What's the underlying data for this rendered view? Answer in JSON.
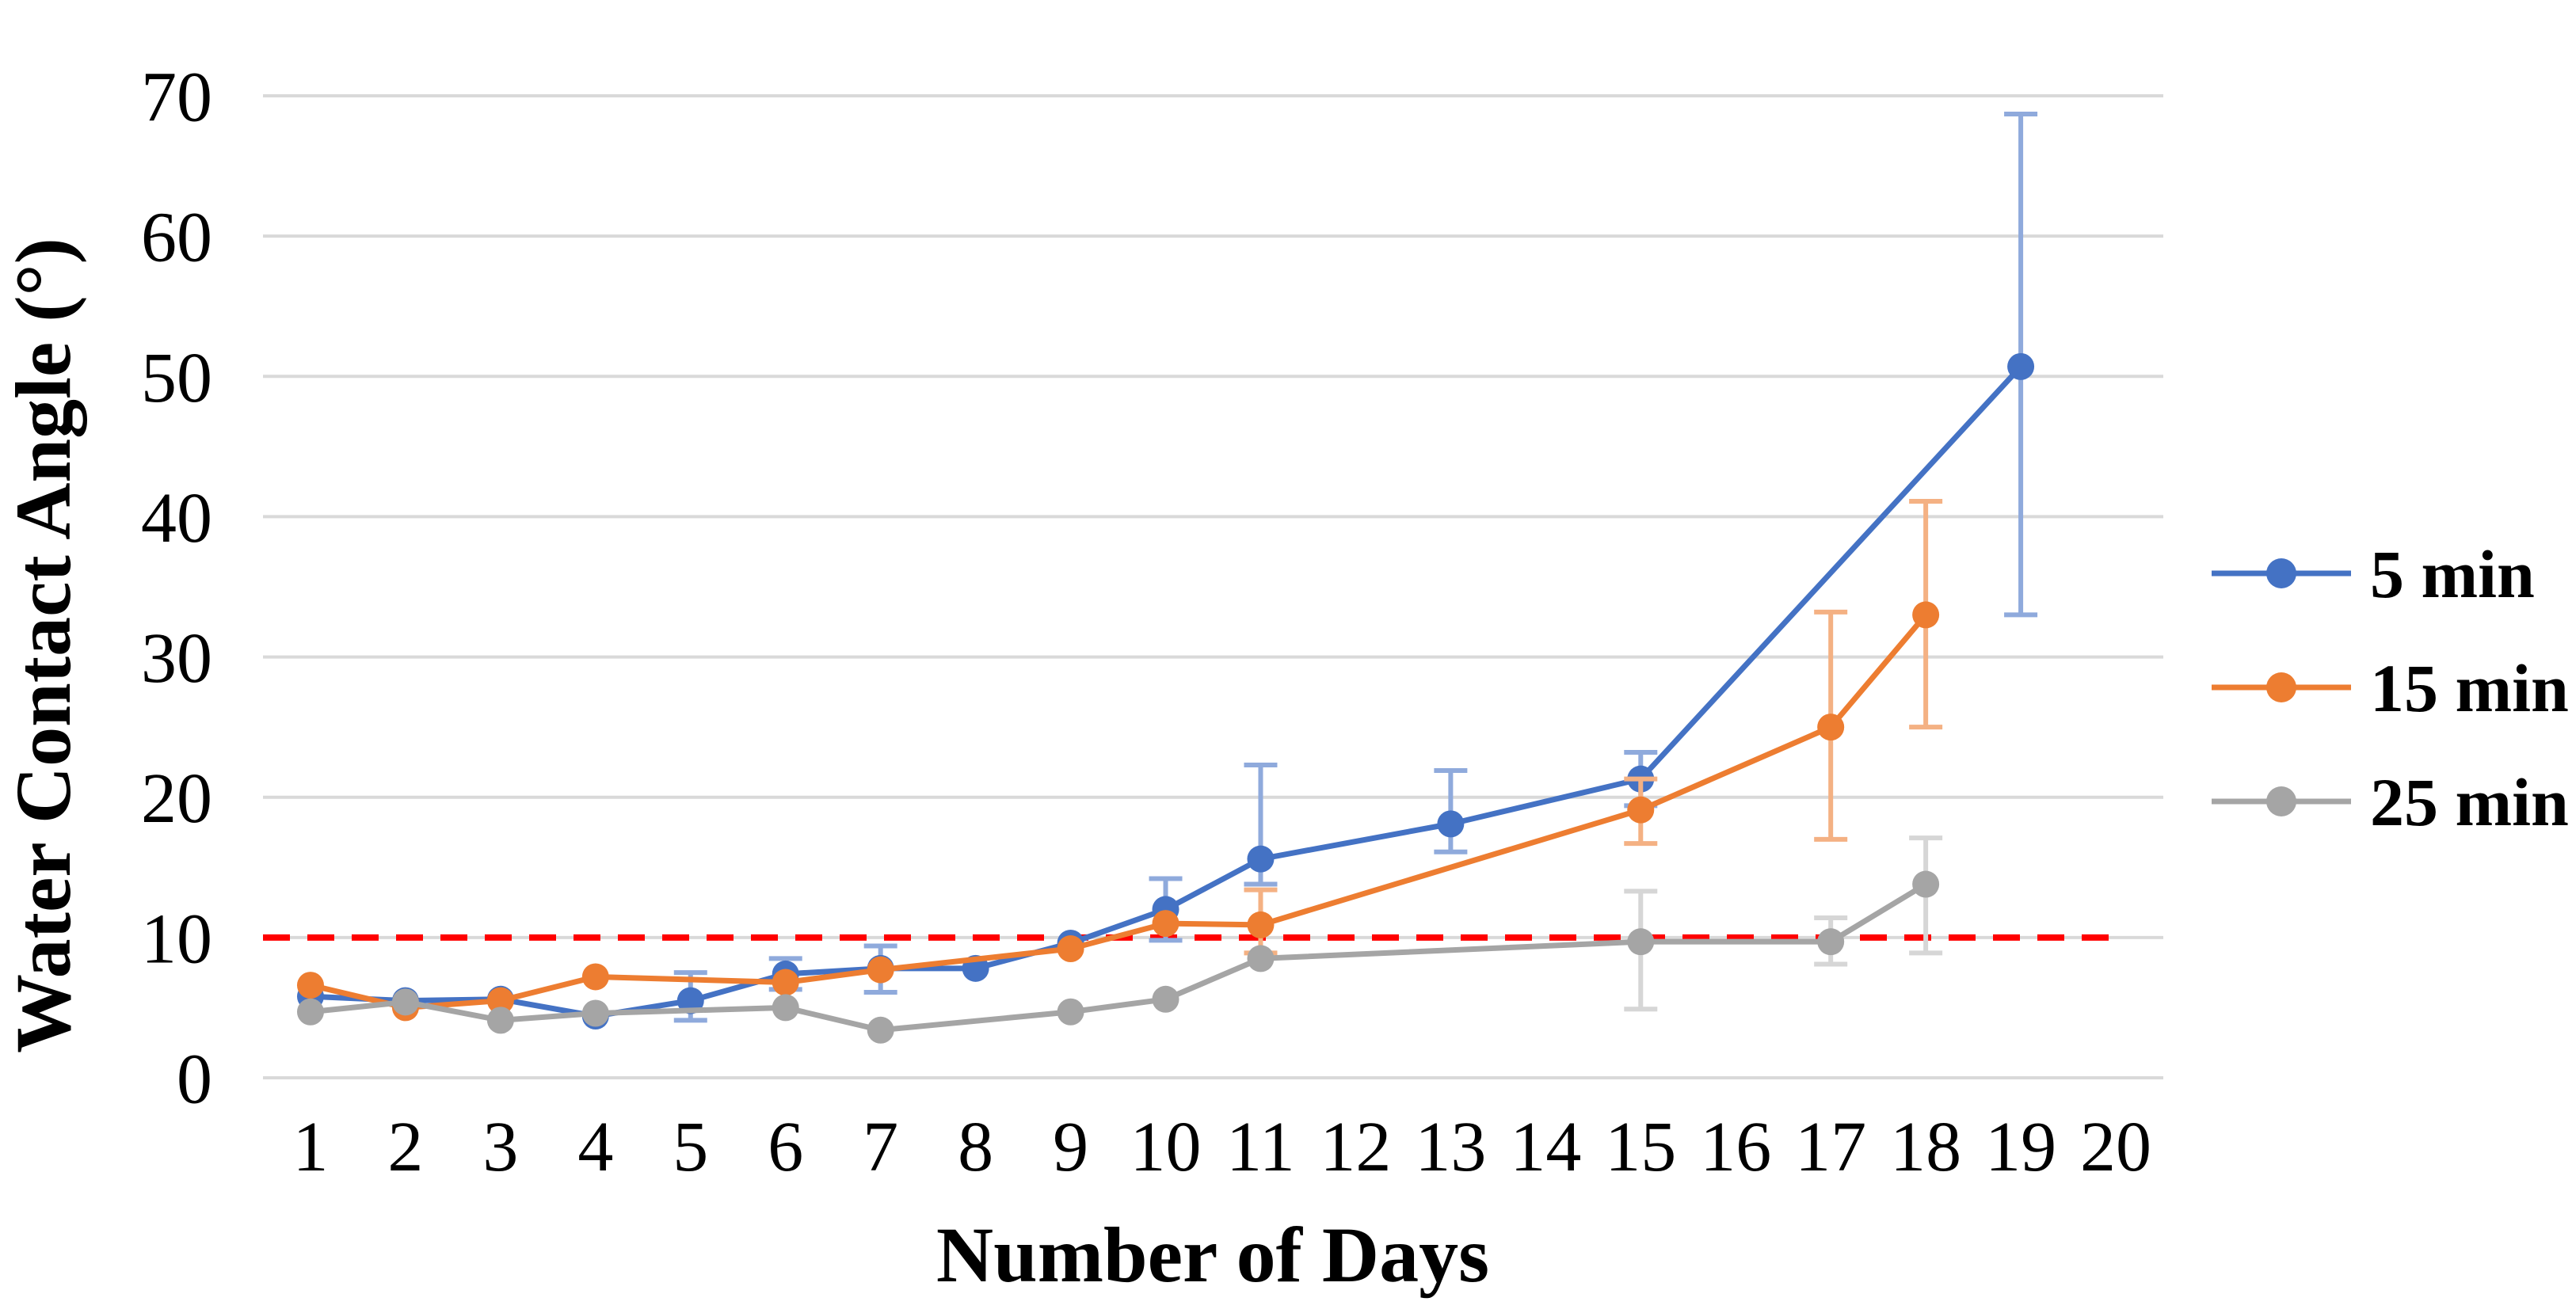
{
  "chart_data": {
    "type": "line",
    "title": "",
    "xlabel": "Number of Days",
    "ylabel": "Water Contact Angle (°)",
    "x_ticks": [
      "1",
      "2",
      "3",
      "4",
      "5",
      "6",
      "7",
      "8",
      "9",
      "10",
      "11",
      "12",
      "13",
      "14",
      "15",
      "16",
      "17",
      "18",
      "19",
      "20"
    ],
    "x_range_days": [
      1,
      20
    ],
    "ylim": [
      0,
      70
    ],
    "y_tick_step": 10,
    "y_ticks": [
      "0",
      "10",
      "20",
      "30",
      "40",
      "50",
      "60",
      "70"
    ],
    "grid": "horizontal",
    "gridline_color": "#D9D9D9",
    "legend_position": "right",
    "reference_line": {
      "y": 10,
      "color": "#FF0000",
      "style": "dashed"
    },
    "series": [
      {
        "name": "5 min",
        "color": "#4472C4",
        "error_color": "#8FAADC",
        "points": [
          {
            "x": 1,
            "y": 5.8
          },
          {
            "x": 2,
            "y": 5.5
          },
          {
            "x": 3,
            "y": 5.6
          },
          {
            "x": 4,
            "y": 4.4
          },
          {
            "x": 5,
            "y": 5.5,
            "eu": 2.0,
            "ed": 1.4
          },
          {
            "x": 6,
            "y": 7.4,
            "eu": 1.1,
            "ed": 1.1
          },
          {
            "x": 7,
            "y": 7.8,
            "eu": 1.6,
            "ed": 1.7
          },
          {
            "x": 8,
            "y": 7.8
          },
          {
            "x": 9,
            "y": 9.6
          },
          {
            "x": 10,
            "y": 12.0,
            "eu": 2.2,
            "ed": 2.2
          },
          {
            "x": 11,
            "y": 15.6,
            "eu": 6.7,
            "ed": 1.8
          },
          {
            "x": 13,
            "y": 18.1,
            "eu": 3.8,
            "ed": 2.0
          },
          {
            "x": 15,
            "y": 21.3,
            "eu": 1.9,
            "ed": 1.9
          },
          {
            "x": 19,
            "y": 50.7,
            "eu": 18.0,
            "ed": 17.7
          }
        ]
      },
      {
        "name": "15 min",
        "color": "#ED7D31",
        "error_color": "#F4B183",
        "points": [
          {
            "x": 1,
            "y": 6.6
          },
          {
            "x": 2,
            "y": 5.0
          },
          {
            "x": 3,
            "y": 5.5
          },
          {
            "x": 4,
            "y": 7.2
          },
          {
            "x": 6,
            "y": 6.8
          },
          {
            "x": 7,
            "y": 7.7
          },
          {
            "x": 9,
            "y": 9.2
          },
          {
            "x": 10,
            "y": 11.0
          },
          {
            "x": 11,
            "y": 10.9,
            "eu": 2.5,
            "ed": 2.0
          },
          {
            "x": 15,
            "y": 19.1,
            "eu": 2.2,
            "ed": 2.4
          },
          {
            "x": 17,
            "y": 25.0,
            "eu": 8.2,
            "ed": 8.0
          },
          {
            "x": 18,
            "y": 33.0,
            "eu": 8.1,
            "ed": 8.0
          }
        ]
      },
      {
        "name": "25 min",
        "color": "#A5A5A5",
        "error_color": "#D6D6D6",
        "points": [
          {
            "x": 1,
            "y": 4.7
          },
          {
            "x": 2,
            "y": 5.4
          },
          {
            "x": 3,
            "y": 4.1
          },
          {
            "x": 4,
            "y": 4.6
          },
          {
            "x": 6,
            "y": 5.0
          },
          {
            "x": 7,
            "y": 3.4
          },
          {
            "x": 9,
            "y": 4.7
          },
          {
            "x": 10,
            "y": 5.6
          },
          {
            "x": 11,
            "y": 8.5
          },
          {
            "x": 15,
            "y": 9.7,
            "eu": 3.6,
            "ed": 4.8
          },
          {
            "x": 17,
            "y": 9.7,
            "eu": 1.7,
            "ed": 1.6
          },
          {
            "x": 18,
            "y": 13.8,
            "eu": 3.3,
            "ed": 4.9
          }
        ]
      }
    ],
    "legend": {
      "entries": [
        "5 min",
        "15 min",
        "25 min"
      ]
    }
  }
}
